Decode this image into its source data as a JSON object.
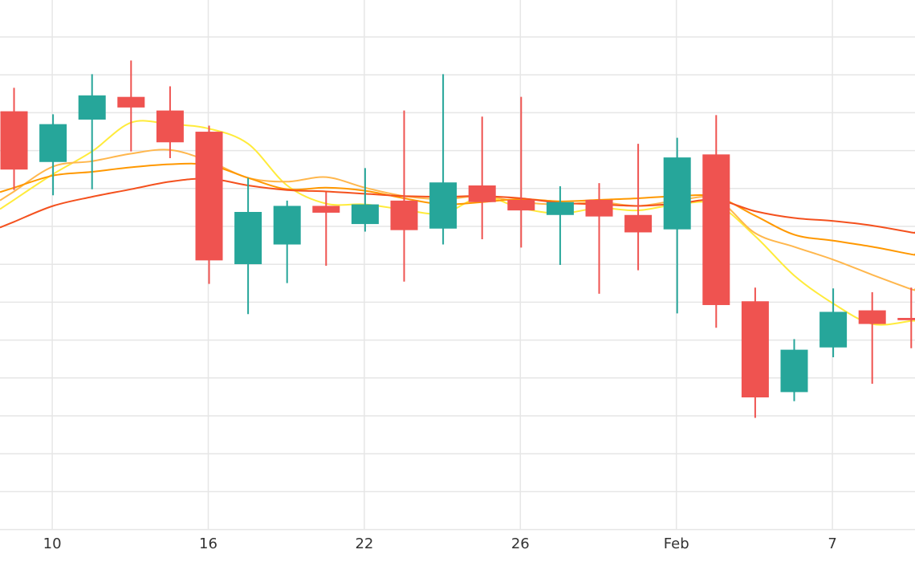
{
  "chart_data": {
    "type": "candlestick",
    "title": "",
    "xlabel": "",
    "ylabel": "",
    "grid": true,
    "legend": "none",
    "colors": {
      "up": "#26a69a",
      "down": "#ef5350",
      "grid": "#e6e6e6",
      "ma_lines": [
        "#ffeb3b",
        "#ffb74d",
        "#ff9800",
        "#f4511e"
      ]
    },
    "ylim": [
      0,
      700
    ],
    "x_ticks": [
      {
        "label": "10",
        "index": 1
      },
      {
        "label": "16",
        "index": 5
      },
      {
        "label": "22",
        "index": 9
      },
      {
        "label": "26",
        "index": 13
      },
      {
        "label": "Feb",
        "index": 17
      },
      {
        "label": "7",
        "index": 21
      }
    ],
    "candles": [
      {
        "open": 553,
        "high": 584,
        "low": 449,
        "close": 476
      },
      {
        "open": 486,
        "high": 549,
        "low": 442,
        "close": 536
      },
      {
        "open": 542,
        "high": 602,
        "low": 450,
        "close": 574
      },
      {
        "open": 572,
        "high": 620,
        "low": 500,
        "close": 558
      },
      {
        "open": 554,
        "high": 586,
        "low": 491,
        "close": 512
      },
      {
        "open": 526,
        "high": 534,
        "low": 325,
        "close": 356
      },
      {
        "open": 351,
        "high": 465,
        "low": 285,
        "close": 420
      },
      {
        "open": 377,
        "high": 435,
        "low": 326,
        "close": 428
      },
      {
        "open": 428,
        "high": 446,
        "low": 349,
        "close": 419
      },
      {
        "open": 404,
        "high": 478,
        "low": 394,
        "close": 430
      },
      {
        "open": 435,
        "high": 554,
        "low": 328,
        "close": 396
      },
      {
        "open": 398,
        "high": 602,
        "low": 377,
        "close": 459
      },
      {
        "open": 455,
        "high": 546,
        "low": 384,
        "close": 433
      },
      {
        "open": 436,
        "high": 572,
        "low": 373,
        "close": 422
      },
      {
        "open": 416,
        "high": 454,
        "low": 350,
        "close": 433
      },
      {
        "open": 436,
        "high": 458,
        "low": 312,
        "close": 414
      },
      {
        "open": 416,
        "high": 510,
        "low": 343,
        "close": 393
      },
      {
        "open": 397,
        "high": 518,
        "low": 286,
        "close": 492
      },
      {
        "open": 496,
        "high": 548,
        "low": 267,
        "close": 297
      },
      {
        "open": 302,
        "high": 320,
        "low": 148,
        "close": 175
      },
      {
        "open": 182,
        "high": 252,
        "low": 170,
        "close": 238
      },
      {
        "open": 241,
        "high": 319,
        "low": 228,
        "close": 288
      },
      {
        "open": 290,
        "high": 314,
        "low": 193,
        "close": 272
      },
      {
        "open": 280,
        "high": 320,
        "low": 240,
        "close": 277
      }
    ],
    "moving_averages": [
      {
        "values": [
          436,
          470,
          500,
          538,
          536,
          530,
          510,
          455,
          431,
          430,
          423,
          418,
          440,
          425,
          418,
          425,
          422,
          430,
          430,
          388,
          336,
          299,
          272,
          276
        ]
      },
      {
        "values": [
          447,
          480,
          487,
          497,
          502,
          487,
          465,
          460,
          466,
          452,
          441,
          437,
          441,
          433,
          430,
          433,
          428,
          435,
          437,
          392,
          374,
          357,
          337,
          318
        ]
      },
      {
        "values": [
          452,
          468,
          473,
          479,
          483,
          482,
          465,
          450,
          452,
          448,
          438,
          430,
          433,
          437,
          434,
          436,
          438,
          441,
          440,
          415,
          390,
          382,
          374,
          364
        ]
      },
      {
        "values": [
          407,
          428,
          440,
          450,
          460,
          464,
          455,
          449,
          447,
          444,
          441,
          440,
          441,
          438,
          432,
          430,
          428,
          431,
          436,
          421,
          412,
          408,
          402,
          393
        ]
      }
    ]
  }
}
